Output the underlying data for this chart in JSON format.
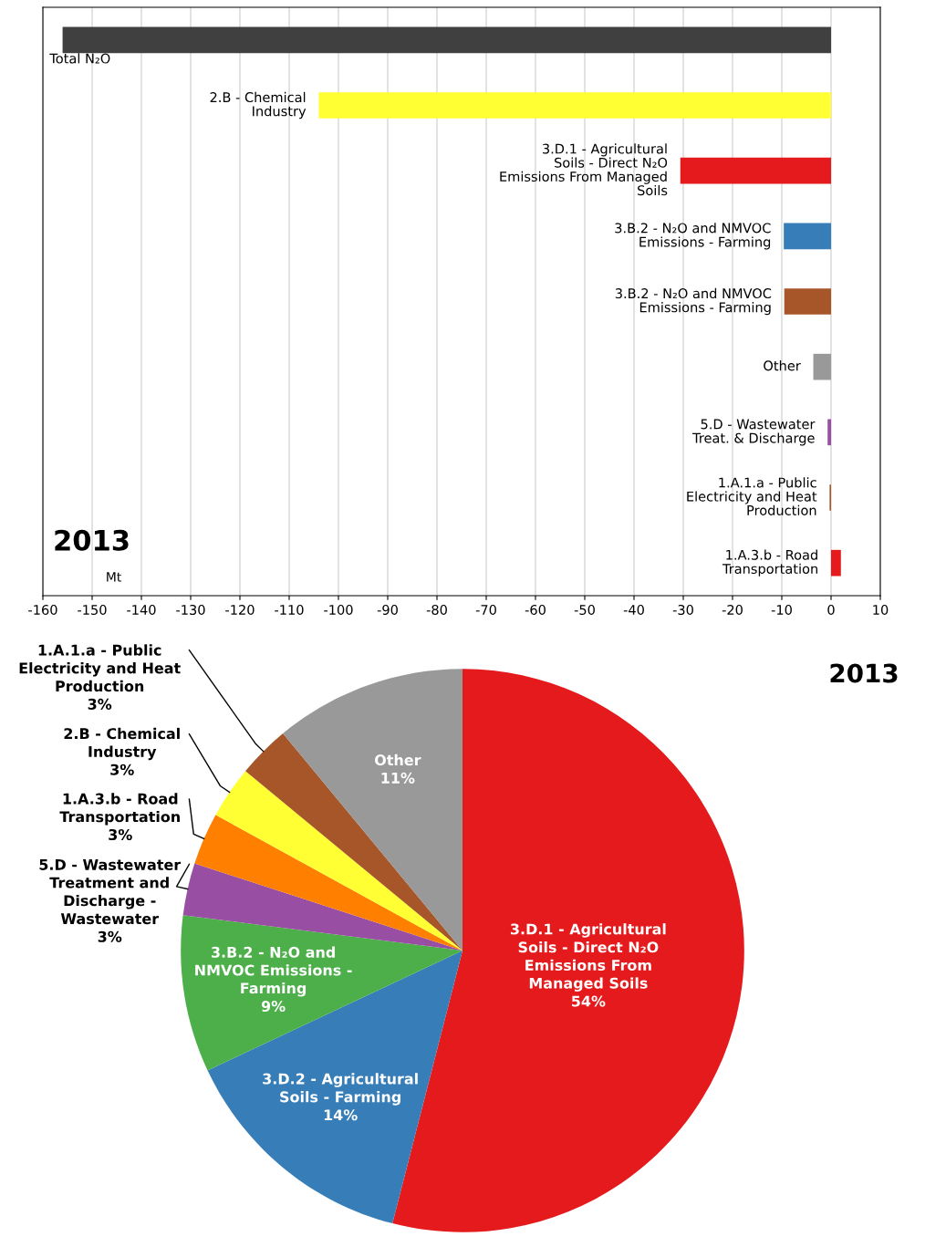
{
  "chart_data": [
    {
      "type": "bar",
      "orientation": "horizontal",
      "categories": [
        "Total N₂O",
        "2.B - Chemical Industry",
        "3.D.1 - Agricultural Soils - Direct N₂O Emissions From Managed Soils",
        "3.B.2 - N₂O and NMVOC Emissions - Farming",
        "3.B.2 - N₂O and NMVOC Emissions - Farming",
        "Other",
        "5.D - Wastewater Treat. & Discharge",
        "1.A.1.a - Public Electricity and Heat Production",
        "1.A.3.b - Road Transportation"
      ],
      "values": [
        -156,
        -104,
        -30.6,
        -9.6,
        -9.5,
        -3.6,
        -0.7,
        -0.3,
        2
      ],
      "colors": [
        "#404040",
        "#ffff33",
        "#e41a1c",
        "#377eb8",
        "#a65628",
        "#999999",
        "#984ea3",
        "#a65628",
        "#e41a1c"
      ],
      "xlim": [
        -160,
        10
      ],
      "xticks": [
        -160,
        -150,
        -140,
        -130,
        -120,
        -110,
        -100,
        -90,
        -80,
        -70,
        -60,
        -50,
        -40,
        -30,
        -20,
        -10,
        0,
        10
      ],
      "grid": "x",
      "tick_labels": "x",
      "annotations": [
        "2013",
        "Mt"
      ]
    },
    {
      "type": "pie",
      "title": "2013",
      "categories": [
        "3.D.1 - Agricultural Soils - Direct N₂O Emissions From Managed Soils",
        "3.D.2 - Agricultural Soils - Farming",
        "3.B.2 - N₂O and NMVOC Emissions - Farming",
        "5.D - Wastewater Treatment and Discharge - Wastewater",
        "1.A.3.b - Road Transportation",
        "2.B - Chemical Industry",
        "1.A.1.a - Public Electricity and Heat Production",
        "Other"
      ],
      "values": [
        54,
        14,
        9,
        3,
        3,
        3,
        3,
        11
      ],
      "colors": [
        "#e41a1c",
        "#377eb8",
        "#4daf4a",
        "#984ea3",
        "#ff7f00",
        "#ffff33",
        "#a65628",
        "#999999"
      ],
      "value_labels": [
        "54%",
        "14%",
        "9%",
        "3%",
        "3%",
        "3%",
        "3%",
        "11%"
      ]
    }
  ]
}
